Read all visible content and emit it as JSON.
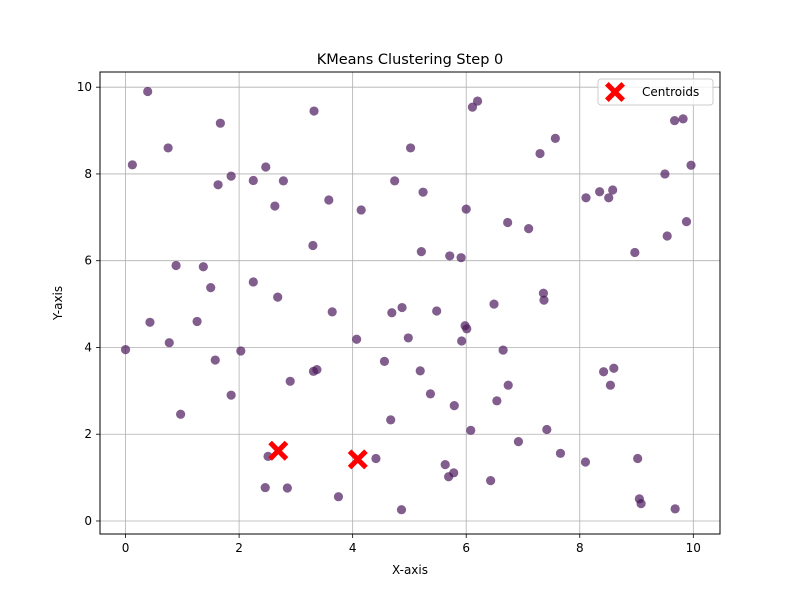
{
  "chart_data": {
    "type": "scatter",
    "title": "KMeans Clustering Step 0",
    "xlabel": "X-axis",
    "ylabel": "Y-axis",
    "xlim": [
      -0.45,
      10.47
    ],
    "ylim": [
      -0.3,
      10.35
    ],
    "xticks": [
      0,
      2,
      4,
      6,
      8,
      10
    ],
    "yticks": [
      0,
      2,
      4,
      6,
      8,
      10
    ],
    "grid": true,
    "legend_position": "top-right",
    "colors": {
      "points": "#4b1a5c",
      "centroids": "#ff0000"
    },
    "series": [
      {
        "kind": "points",
        "x": [
          0.0,
          0.39,
          0.75,
          0.12,
          1.67,
          2.47,
          3.32,
          5.02,
          6.2,
          6.11,
          7.57,
          7.3,
          9.82,
          9.67,
          9.96,
          1.86,
          2.25,
          2.78,
          1.63,
          2.63,
          3.58,
          4.15,
          4.74,
          5.24,
          6.0,
          8.11,
          8.35,
          8.58,
          8.51,
          9.5,
          6.73,
          7.1,
          9.88,
          9.54,
          3.3,
          5.21,
          5.71,
          5.91,
          8.97,
          0.89,
          1.37,
          2.25,
          1.5,
          2.68,
          0.43,
          1.26,
          3.64,
          4.69,
          4.87,
          5.48,
          6.49,
          7.36,
          7.37,
          6.01,
          5.98,
          5.92,
          0.77,
          2.03,
          1.58,
          4.07,
          4.98,
          6.65,
          8.6,
          3.37,
          3.31,
          2.9,
          4.56,
          5.19,
          8.42,
          8.54,
          6.74,
          5.37,
          1.86,
          0.97,
          6.54,
          5.79,
          4.67,
          6.08,
          7.42,
          6.92,
          7.66,
          8.1,
          9.02,
          2.51,
          4.41,
          5.63,
          5.78,
          5.69,
          6.43,
          2.46,
          2.85,
          3.75,
          9.05,
          9.08,
          4.86,
          9.68
        ],
        "y": [
          3.95,
          9.9,
          8.6,
          8.21,
          9.17,
          8.16,
          9.45,
          8.6,
          9.68,
          9.54,
          8.82,
          8.47,
          9.27,
          9.23,
          8.2,
          7.95,
          7.85,
          7.84,
          7.75,
          7.26,
          7.4,
          7.17,
          7.84,
          7.58,
          7.19,
          7.45,
          7.59,
          7.63,
          7.45,
          8.0,
          6.88,
          6.74,
          6.9,
          6.57,
          6.35,
          6.21,
          6.11,
          6.07,
          6.19,
          5.89,
          5.86,
          5.51,
          5.38,
          5.16,
          4.58,
          4.6,
          4.82,
          4.8,
          4.92,
          4.84,
          5.0,
          5.25,
          5.09,
          4.43,
          4.5,
          4.15,
          4.11,
          3.92,
          3.71,
          4.19,
          4.22,
          3.94,
          3.52,
          3.49,
          3.45,
          3.22,
          3.68,
          3.46,
          3.44,
          3.13,
          3.13,
          2.93,
          2.9,
          2.46,
          2.77,
          2.66,
          2.33,
          2.09,
          2.11,
          1.83,
          1.56,
          1.36,
          1.44,
          1.49,
          1.44,
          1.3,
          1.11,
          1.02,
          0.93,
          0.77,
          0.76,
          0.56,
          0.51,
          0.4,
          0.26,
          0.28
        ]
      },
      {
        "kind": "centroids",
        "name": "Centroids",
        "x": [
          2.69,
          4.09
        ],
        "y": [
          1.62,
          1.42
        ]
      }
    ]
  }
}
